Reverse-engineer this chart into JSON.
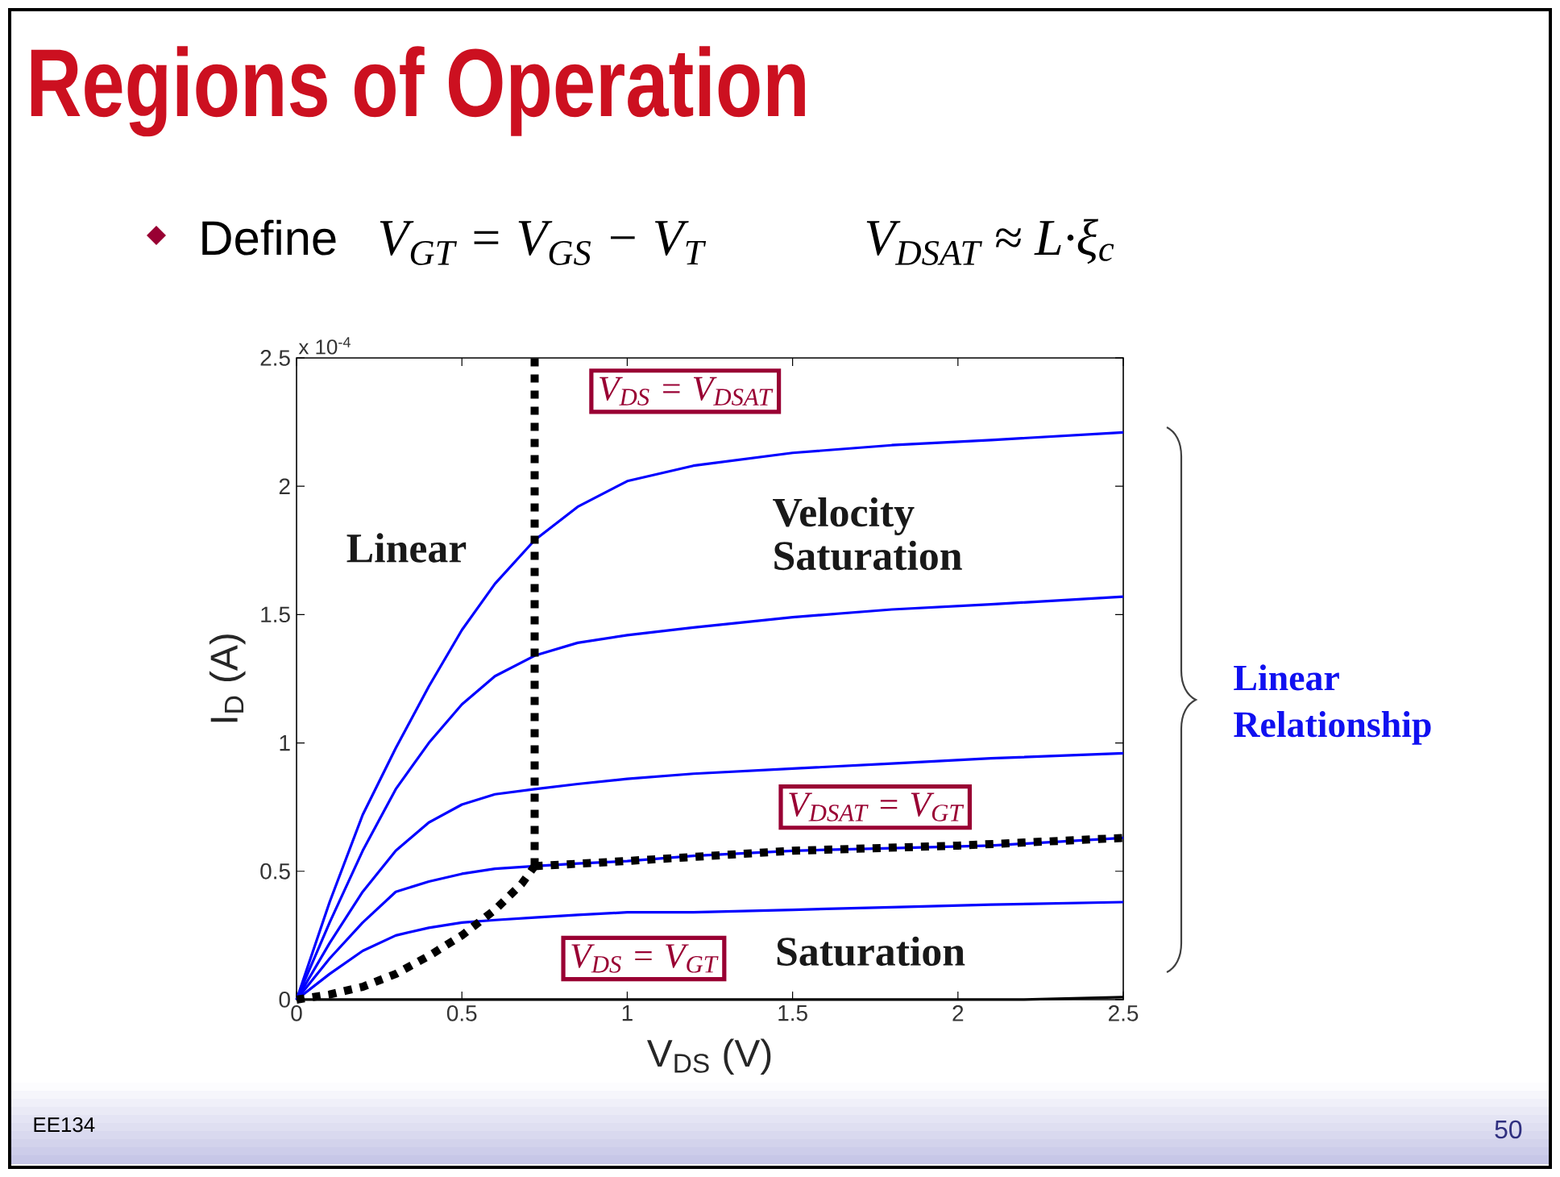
{
  "chart_data": {
    "type": "line",
    "title": "Regions of Operation",
    "xlabel": "V$_{DS}$ (V)",
    "ylabel": "I$_{D}$ (A)",
    "xlim": [
      0,
      2.5
    ],
    "ylim": [
      0,
      2.5
    ],
    "xticks": [
      0,
      0.5,
      1,
      1.5,
      2,
      2.5
    ],
    "yticks": [
      0,
      0.5,
      1,
      1.5,
      2,
      2.5
    ],
    "line_style": "solid",
    "x": [
      0,
      0.1,
      0.2,
      0.3,
      0.4,
      0.5,
      0.6,
      0.72,
      0.85,
      1.0,
      1.2,
      1.5,
      1.8,
      2.1,
      2.5
    ],
    "series": [
      {
        "color": "#0000ff",
        "values": [
          0,
          0.38,
          0.72,
          0.98,
          1.22,
          1.44,
          1.62,
          1.79,
          1.92,
          2.02,
          2.08,
          2.13,
          2.16,
          2.18,
          2.21
        ]
      },
      {
        "color": "#0000ff",
        "values": [
          0,
          0.3,
          0.58,
          0.82,
          1.0,
          1.15,
          1.26,
          1.34,
          1.39,
          1.42,
          1.45,
          1.49,
          1.52,
          1.54,
          1.57
        ]
      },
      {
        "color": "#0000ff",
        "values": [
          0,
          0.22,
          0.42,
          0.58,
          0.69,
          0.76,
          0.8,
          0.82,
          0.84,
          0.86,
          0.88,
          0.9,
          0.92,
          0.94,
          0.96
        ]
      },
      {
        "color": "#0000ff",
        "values": [
          0,
          0.16,
          0.3,
          0.42,
          0.46,
          0.49,
          0.51,
          0.52,
          0.53,
          0.54,
          0.56,
          0.58,
          0.59,
          0.6,
          0.63
        ]
      },
      {
        "color": "#0000ff",
        "values": [
          0,
          0.1,
          0.19,
          0.25,
          0.28,
          0.3,
          0.31,
          0.32,
          0.33,
          0.34,
          0.34,
          0.35,
          0.36,
          0.37,
          0.38
        ]
      },
      {
        "color": "#000000",
        "x": [
          0,
          2.2,
          2.5
        ],
        "values": [
          0,
          0,
          0.01
        ]
      },
      {
        "color": "#000000",
        "line_style": "dotted",
        "x": [
          0,
          0.1,
          0.2,
          0.3,
          0.4,
          0.5,
          0.6,
          0.68,
          0.72
        ],
        "values": [
          0,
          0.02,
          0.05,
          0.1,
          0.17,
          0.25,
          0.35,
          0.45,
          0.52
        ]
      },
      {
        "color": "#000000",
        "line_style": "dotted",
        "x": [
          0.72,
          0.72
        ],
        "values": [
          0.52,
          2.5
        ]
      },
      {
        "color": "#000000",
        "line_style": "dotted",
        "x": [
          0.72,
          1.0,
          1.5,
          2.0,
          2.5
        ],
        "values": [
          0.52,
          0.54,
          0.58,
          0.6,
          0.63
        ]
      }
    ],
    "annotations": [
      "x 10$^{-4}$",
      "Define",
      "V$_{GT}$ = V$_{GS}$ − V$_{T}$",
      "V$_{DSAT}$ ≈ L·ξ$_{c}$",
      "Linear",
      "Velocity Saturation",
      "Saturation",
      "V$_{DS}$ = V$_{DSAT}$",
      "V$_{DSAT}$ = V$_{GT}$",
      "V$_{DS}$ = V$_{GT}$",
      "Linear Relationship",
      "EE134",
      "50"
    ]
  }
}
